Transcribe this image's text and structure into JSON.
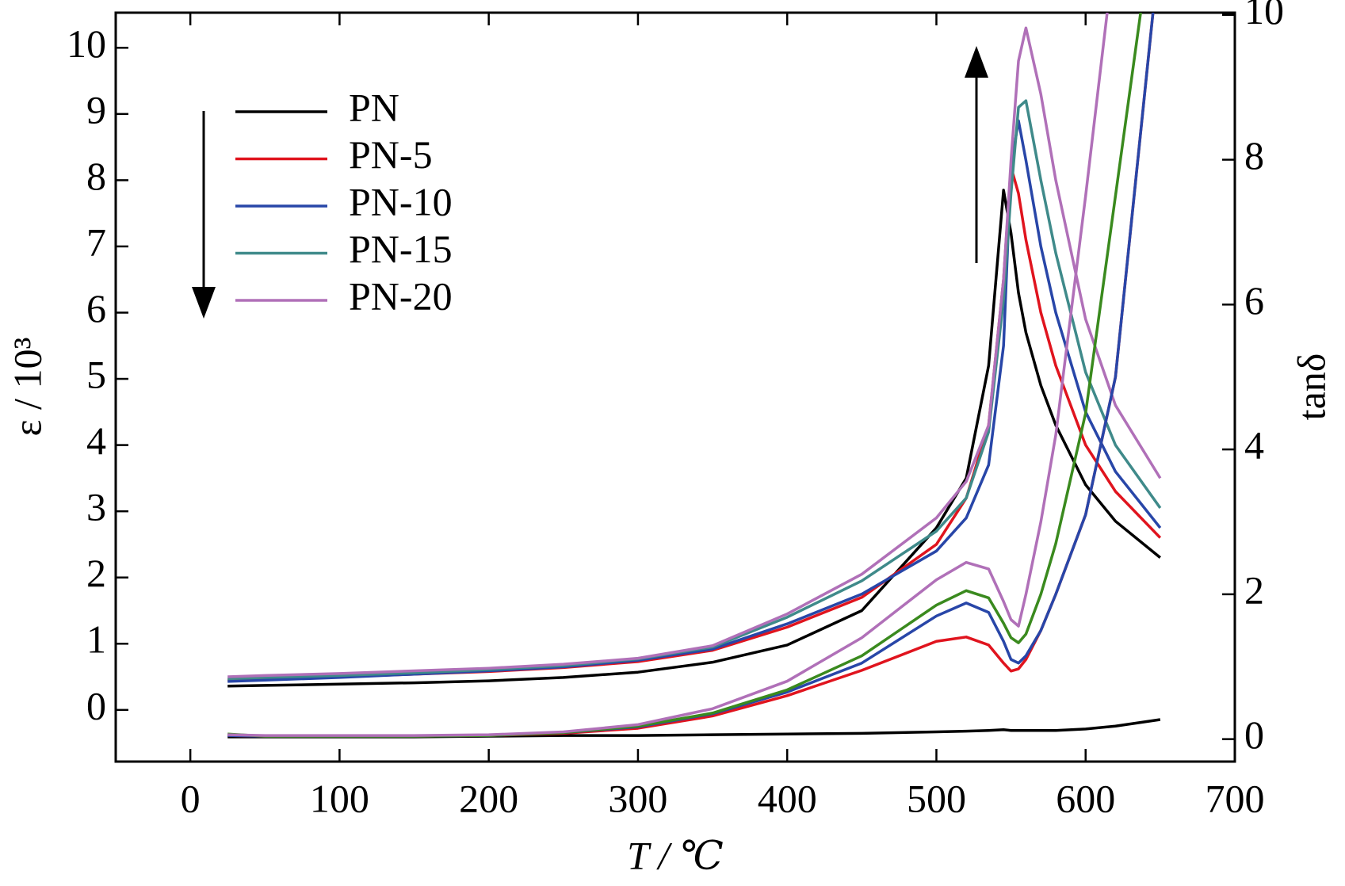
{
  "chart_data": {
    "type": "line",
    "xlabel": "T / ℃",
    "ylabel": "ε / 10³",
    "y2label": "tanδ",
    "x": [
      25,
      50,
      100,
      150,
      200,
      250,
      300,
      350,
      400,
      450,
      500,
      520,
      535,
      545,
      550,
      555,
      560,
      570,
      580,
      600,
      620,
      650
    ],
    "xlim": [
      -50,
      700
    ],
    "xticks": [
      0,
      100,
      200,
      300,
      400,
      500,
      600,
      700
    ],
    "ylim": [
      -0.78,
      10.53
    ],
    "yticks": [
      0,
      1,
      2,
      3,
      4,
      5,
      6,
      7,
      8,
      9,
      10
    ],
    "y2lim": [
      -0.31,
      10.03
    ],
    "y2ticks": [
      0,
      2,
      4,
      6,
      8,
      10
    ],
    "legend": "upper left",
    "series": [
      {
        "name": "PN",
        "color": "#000000",
        "values": [
          0.36,
          0.37,
          0.39,
          0.41,
          0.44,
          0.49,
          0.57,
          0.72,
          0.98,
          1.5,
          2.75,
          3.5,
          5.2,
          7.85,
          7.2,
          6.3,
          5.7,
          4.9,
          4.3,
          3.4,
          2.85,
          2.3
        ]
      },
      {
        "name": "PN-5",
        "color": "#e0141e",
        "values": [
          0.45,
          0.47,
          0.5,
          0.54,
          0.58,
          0.64,
          0.73,
          0.9,
          1.25,
          1.7,
          2.5,
          3.2,
          4.3,
          6.5,
          8.2,
          7.8,
          7.1,
          6.0,
          5.2,
          4.0,
          3.3,
          2.6
        ]
      },
      {
        "name": "PN-10",
        "color": "#2846a8",
        "values": [
          0.43,
          0.45,
          0.49,
          0.54,
          0.59,
          0.65,
          0.75,
          0.92,
          1.3,
          1.75,
          2.4,
          2.9,
          3.7,
          5.5,
          8.2,
          8.9,
          8.3,
          7.0,
          6.0,
          4.5,
          3.6,
          2.75
        ]
      },
      {
        "name": "PN-15",
        "color": "#3f8a8a",
        "values": [
          0.47,
          0.49,
          0.52,
          0.56,
          0.61,
          0.67,
          0.77,
          0.95,
          1.4,
          1.95,
          2.7,
          3.2,
          4.2,
          6.2,
          7.8,
          9.1,
          9.2,
          8.0,
          6.9,
          5.1,
          4.0,
          3.05
        ]
      },
      {
        "name": "PN-20",
        "color": "#b070b8",
        "values": [
          0.5,
          0.52,
          0.55,
          0.59,
          0.63,
          0.69,
          0.78,
          0.97,
          1.45,
          2.05,
          2.9,
          3.45,
          4.3,
          6.5,
          8.3,
          9.8,
          10.3,
          9.3,
          8.0,
          5.9,
          4.6,
          3.5
        ]
      },
      {
        "color": "#000000",
        "axis": "y2",
        "values": [
          0.03,
          0.03,
          0.03,
          0.03,
          0.04,
          0.05,
          0.05,
          0.06,
          0.07,
          0.08,
          0.1,
          0.11,
          0.12,
          0.13,
          0.12,
          0.12,
          0.12,
          0.12,
          0.12,
          0.14,
          0.18,
          0.27
        ]
      },
      {
        "color": "#e0141e",
        "axis": "y2",
        "values": [
          0.05,
          0.04,
          0.04,
          0.04,
          0.05,
          0.08,
          0.15,
          0.32,
          0.6,
          0.95,
          1.35,
          1.41,
          1.3,
          1.05,
          0.94,
          0.97,
          1.1,
          1.5,
          2.0,
          3.1,
          5.0,
          11
        ]
      },
      {
        "color": "#2846a8",
        "axis": "y2",
        "values": [
          0.05,
          0.04,
          0.04,
          0.04,
          0.05,
          0.09,
          0.17,
          0.35,
          0.65,
          1.05,
          1.7,
          1.88,
          1.75,
          1.35,
          1.1,
          1.05,
          1.15,
          1.5,
          2.0,
          3.1,
          5.0,
          11
        ]
      },
      {
        "color": "#3a8a1e",
        "axis": "y2",
        "values": [
          0.07,
          0.04,
          0.04,
          0.04,
          0.05,
          0.09,
          0.18,
          0.36,
          0.68,
          1.15,
          1.85,
          2.05,
          1.95,
          1.6,
          1.4,
          1.33,
          1.45,
          2.0,
          2.7,
          4.5,
          7.5,
          12
        ]
      },
      {
        "color": "#b070b8",
        "axis": "y2",
        "values": [
          0.06,
          0.05,
          0.05,
          0.05,
          0.06,
          0.1,
          0.2,
          0.42,
          0.8,
          1.4,
          2.2,
          2.44,
          2.35,
          1.9,
          1.65,
          1.56,
          2.0,
          3.0,
          4.2,
          7.5,
          11,
          14
        ]
      }
    ]
  }
}
